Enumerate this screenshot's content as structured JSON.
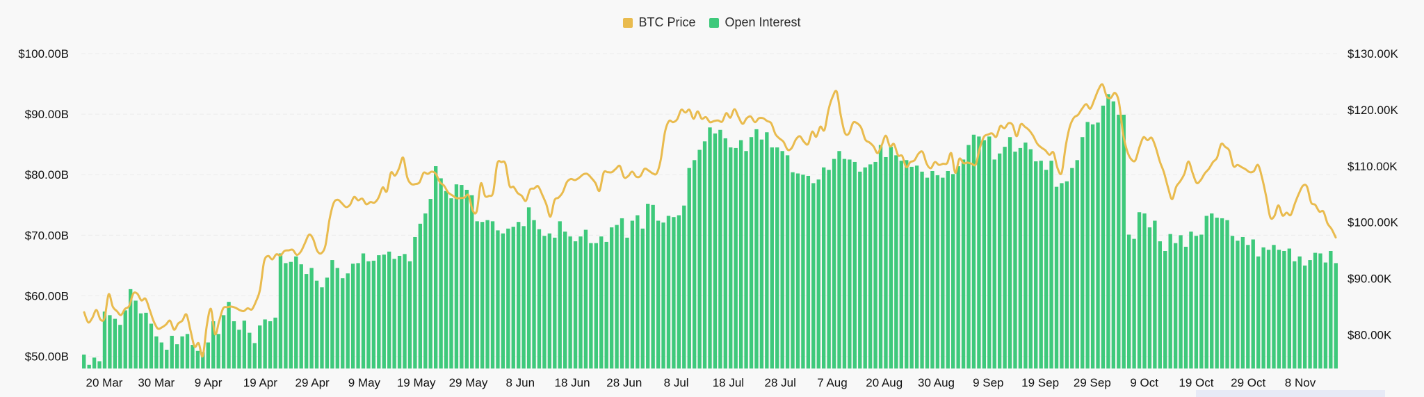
{
  "legend": {
    "btc_label": "BTC Price",
    "oi_label": "Open Interest"
  },
  "colors": {
    "btc": "#e9bb4e",
    "oi": "#3ec97b",
    "grid": "#ececec",
    "background": "#f8f8f8"
  },
  "chart_data": {
    "type": "bar",
    "ylabel": "",
    "xlabel": "",
    "grid": true,
    "legend_position": "top-center",
    "y_left": {
      "min": 48,
      "max": 100,
      "ticks": [
        50,
        60,
        70,
        80,
        90,
        100
      ],
      "tick_labels": [
        "$50.00B",
        "$60.00B",
        "$70.00B",
        "$80.00B",
        "$90.00B",
        "$100.00B"
      ]
    },
    "y_right": {
      "min": 74,
      "max": 130,
      "ticks": [
        80,
        90,
        100,
        110,
        120,
        130
      ],
      "tick_labels": [
        "$80.00K",
        "$90.00K",
        "$100.00K",
        "$110.00K",
        "$120.00K",
        "$130.00K"
      ]
    },
    "x_tick_labels": [
      "20 Mar",
      "30 Mar",
      "9 Apr",
      "19 Apr",
      "29 Apr",
      "9 May",
      "19 May",
      "29 May",
      "8 Jun",
      "18 Jun",
      "28 Jun",
      "8 Jul",
      "18 Jul",
      "28 Jul",
      "7 Aug",
      "20 Aug",
      "30 Aug",
      "9 Sep",
      "19 Sep",
      "29 Sep",
      "9 Oct",
      "19 Oct",
      "29 Oct",
      "8 Nov"
    ],
    "series": [
      {
        "name": "Open Interest",
        "kind": "bar",
        "axis": "left",
        "unit": "$B",
        "values": [
          50.3,
          48.6,
          49.8,
          49.2,
          57.4,
          56.8,
          56.2,
          55.2,
          57.6,
          61.1,
          59.2,
          57.1,
          57.2,
          55.4,
          53.3,
          52.3,
          51.1,
          53.4,
          52.0,
          53.3,
          53.7,
          51.9,
          50.9,
          50.7,
          52.3,
          55.8,
          53.7,
          56.8,
          59.0,
          55.8,
          54.4,
          55.9,
          53.9,
          52.2,
          55.1,
          56.1,
          55.8,
          56.4,
          67.0,
          65.4,
          65.6,
          66.5,
          65.2,
          63.6,
          64.6,
          62.5,
          61.4,
          63.0,
          65.9,
          64.6,
          62.9,
          63.7,
          65.3,
          65.4,
          67.0,
          65.7,
          65.8,
          66.7,
          66.8,
          67.3,
          66.1,
          66.6,
          66.9,
          65.7,
          69.7,
          71.9,
          73.6,
          76.0,
          81.4,
          79.4,
          77.3,
          76.1,
          78.4,
          78.3,
          77.5,
          76.6,
          72.3,
          72.2,
          72.5,
          72.3,
          70.8,
          70.3,
          71.1,
          71.4,
          72.2,
          71.5,
          74.6,
          72.5,
          71.0,
          69.9,
          70.3,
          69.6,
          72.3,
          70.6,
          69.8,
          69.0,
          69.8,
          70.9,
          68.7,
          68.7,
          69.8,
          68.9,
          71.3,
          71.7,
          72.8,
          69.6,
          72.4,
          73.3,
          71.1,
          75.2,
          75.0,
          72.4,
          72.1,
          73.2,
          73.0,
          73.3,
          74.9,
          81.1,
          82.4,
          84.1,
          85.5,
          87.8,
          86.8,
          87.4,
          86.0,
          84.5,
          84.4,
          85.7,
          83.9,
          86.2,
          87.5,
          85.8,
          87.0,
          84.5,
          84.5,
          83.9,
          83.2,
          80.4,
          80.2,
          80.0,
          79.8,
          78.6,
          79.2,
          81.2,
          80.8,
          82.6,
          83.9,
          82.6,
          82.5,
          82.1,
          80.5,
          81.2,
          81.7,
          82.1,
          84.9,
          82.9,
          84.6,
          83.2,
          82.3,
          82.4,
          81.3,
          81.5,
          80.5,
          79.5,
          80.6,
          79.9,
          79.5,
          80.6,
          80.1,
          81.4,
          82.5,
          84.9,
          86.6,
          86.3,
          85.7,
          86.3,
          82.5,
          83.5,
          84.6,
          86.2,
          83.8,
          84.4,
          85.3,
          84.2,
          82.2,
          82.3,
          80.8,
          82.3,
          78.0,
          78.6,
          78.9,
          81.1,
          82.4,
          86.2,
          88.7,
          88.3,
          88.6,
          91.4,
          93.3,
          92.1,
          89.9,
          89.9,
          70.1,
          69.4,
          73.8,
          73.6,
          71.3,
          72.4,
          69.0,
          67.4,
          70.2,
          68.7,
          70.0,
          68.1,
          70.6,
          69.9,
          70.1,
          73.2,
          73.6,
          72.9,
          72.8,
          72.5,
          69.9,
          69.1,
          69.7,
          68.4,
          69.3,
          66.5,
          68.0,
          67.6,
          68.4,
          67.6,
          67.4,
          67.8,
          65.7,
          66.5,
          65.0,
          65.9,
          67.1,
          67.0,
          65.5,
          67.4,
          65.4
        ]
      },
      {
        "name": "BTC Price",
        "kind": "line",
        "axis": "right",
        "unit": "$K",
        "values": [
          84.0,
          82.2,
          83.0,
          84.4,
          82.7,
          83.0,
          87.2,
          85.0,
          84.2,
          83.5,
          84.6,
          85.1,
          87.3,
          87.3,
          86.1,
          86.4,
          84.5,
          82.4,
          81.1,
          81.3,
          81.8,
          82.5,
          80.9,
          82.0,
          82.5,
          83.6,
          80.8,
          77.9,
          78.5,
          76.2,
          81.7,
          84.6,
          80.1,
          82.4,
          84.7,
          84.9,
          85.0,
          84.8,
          84.4,
          84.2,
          84.7,
          84.5,
          85.9,
          88.0,
          93.0,
          94.0,
          93.4,
          94.3,
          94.1,
          94.9,
          95.0,
          95.1,
          94.2,
          94.8,
          96.3,
          97.8,
          97.0,
          94.9,
          94.5,
          95.9,
          100.5,
          103.4,
          104.0,
          103.4,
          102.7,
          103.1,
          104.5,
          103.9,
          104.2,
          103.2,
          103.6,
          103.5,
          104.4,
          106.2,
          105.5,
          108.8,
          108.3,
          109.6,
          111.5,
          108.0,
          106.8,
          106.8,
          107.1,
          108.8,
          108.6,
          109.0,
          108.6,
          107.1,
          106.5,
          105.3,
          104.8,
          104.3,
          104.3,
          104.4,
          104.8,
          102.1,
          102.0,
          106.9,
          104.7,
          104.7,
          105.3,
          110.4,
          110.7,
          110.4,
          106.5,
          106.3,
          105.2,
          104.7,
          103.8,
          105.8,
          106.0,
          106.4,
          104.9,
          103.2,
          101.0,
          103.9,
          104.4,
          105.3,
          107.1,
          107.7,
          107.5,
          107.9,
          108.5,
          108.6,
          107.9,
          107.0,
          105.6,
          108.8,
          108.9,
          108.9,
          109.5,
          110.0,
          108.0,
          108.2,
          109.0,
          108.1,
          108.2,
          109.5,
          109.2,
          108.7,
          108.7,
          111.2,
          116.0,
          118.0,
          117.8,
          118.3,
          120.0,
          119.5,
          120.0,
          118.4,
          119.7,
          118.4,
          118.7,
          117.8,
          118.0,
          118.1,
          117.9,
          119.4,
          118.6,
          120.1,
          118.7,
          117.5,
          118.5,
          118.8,
          117.8,
          118.5,
          118.5,
          118.0,
          117.6,
          115.7,
          114.9,
          114.3,
          112.9,
          113.2,
          114.7,
          115.3,
          114.3,
          113.9,
          116.1,
          115.2,
          117.0,
          116.4,
          120.0,
          122.3,
          123.2,
          119.0,
          115.9,
          115.8,
          117.7,
          117.6,
          116.8,
          114.7,
          114.2,
          113.5,
          112.3,
          113.7,
          115.4,
          113.5,
          113.9,
          111.9,
          111.8,
          109.8,
          110.7,
          111.0,
          112.2,
          112.5,
          110.4,
          109.6,
          110.7,
          110.2,
          110.4,
          110.5,
          112.3,
          108.8,
          111.3,
          110.5,
          110.6,
          110.4,
          110.3,
          113.2,
          115.2,
          115.6,
          115.8,
          115.2,
          117.1,
          116.7,
          117.6,
          117.3,
          115.3,
          117.4,
          117.0,
          116.4,
          115.4,
          114.0,
          113.3,
          112.8,
          112.0,
          112.4,
          109.6,
          108.8,
          113.6,
          117.0,
          118.6,
          119.1,
          120.2,
          121.0,
          120.2,
          121.8,
          123.6,
          124.5,
          122.4,
          122.1,
          123.0,
          121.4,
          115.8,
          112.7,
          111.2,
          111.0,
          113.3,
          115.1,
          114.6,
          115.0,
          113.3,
          110.8,
          108.9,
          106.2,
          104.1,
          106.3,
          107.3,
          108.6,
          110.8,
          108.8,
          107.0,
          107.5,
          108.7,
          109.5,
          110.7,
          111.5,
          113.9,
          113.4,
          112.7,
          110.0,
          110.2,
          109.8,
          109.4,
          108.9,
          109.1,
          110.2,
          107.9,
          104.6,
          100.9,
          101.1,
          103.0,
          101.2,
          101.7,
          101.3,
          103.3,
          105.1,
          106.5,
          106.3,
          103.5,
          103.1,
          101.9,
          101.9,
          99.8,
          98.8,
          97.3
        ]
      }
    ]
  }
}
